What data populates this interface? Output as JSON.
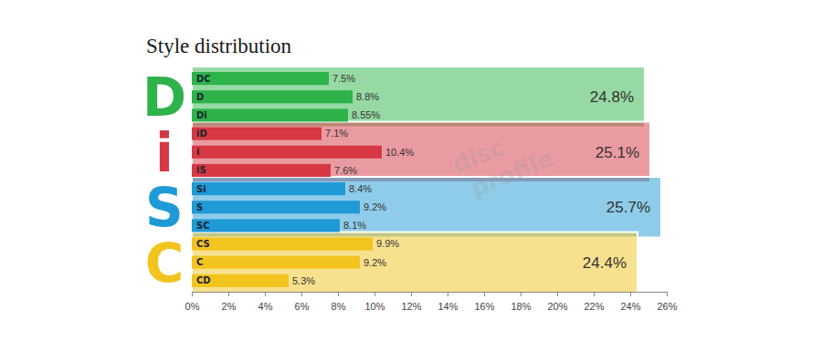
{
  "chart_data": {
    "type": "bar",
    "title": "Style distribution",
    "orientation": "horizontal",
    "data_labels": true,
    "categories": [
      "DC",
      "D",
      "Di",
      "iD",
      "i",
      "iS",
      "Si",
      "S",
      "SC",
      "CS",
      "C",
      "CD"
    ],
    "values": [
      7.5,
      8.8,
      8.55,
      7.1,
      10.4,
      7.6,
      8.4,
      9.2,
      8.1,
      9.9,
      9.2,
      5.3
    ],
    "value_labels": [
      "7.5%",
      "8.8%",
      "8.55%",
      "7.1%",
      "10.4%",
      "7.6%",
      "8.4%",
      "9.2%",
      "8.1%",
      "9.9%",
      "9.2%",
      "5.3%"
    ],
    "colors": [
      "#2db34a",
      "#2db34a",
      "#2db34a",
      "#d63844",
      "#d63844",
      "#d63844",
      "#1f9ad6",
      "#1f9ad6",
      "#1f9ad6",
      "#f2c41e",
      "#f2c41e",
      "#f2c41e"
    ],
    "groups": [
      {
        "name": "D",
        "value": 24.8,
        "label": "24.8%",
        "color": "#2db34a"
      },
      {
        "name": "i",
        "value": 25.1,
        "label": "25.1%",
        "color": "#d63844"
      },
      {
        "name": "S",
        "value": 25.7,
        "label": "25.7%",
        "color": "#1f9ad6"
      },
      {
        "name": "C",
        "value": 24.4,
        "label": "24.4%",
        "color": "#f2c41e"
      }
    ],
    "watermark": [
      "disc",
      "profile"
    ],
    "xlim": [
      0,
      26
    ],
    "xticks": [
      {
        "value": 0,
        "label": "0%"
      },
      {
        "value": 2,
        "label": "2%"
      },
      {
        "value": 4,
        "label": "4%"
      },
      {
        "value": 6,
        "label": "6%"
      },
      {
        "value": 8,
        "label": "8%"
      },
      {
        "value": 10,
        "label": "10%"
      },
      {
        "value": 12,
        "label": "12%"
      },
      {
        "value": 14,
        "label": "14%"
      },
      {
        "value": 16,
        "label": "16%"
      },
      {
        "value": 18,
        "label": "18%"
      },
      {
        "value": 20,
        "label": "20%"
      },
      {
        "value": 22,
        "label": "22%"
      },
      {
        "value": 24,
        "label": "24%"
      },
      {
        "value": 26,
        "label": "26%"
      }
    ]
  }
}
